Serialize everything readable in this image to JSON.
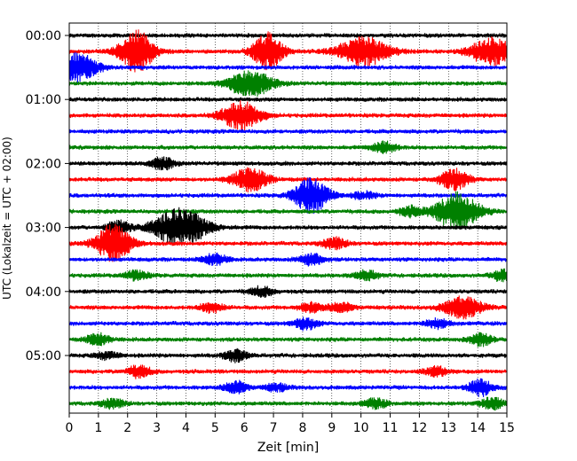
{
  "chart_data": {
    "type": "line",
    "subtype": "helicorder-seismogram",
    "xlabel": "Zeit  [min]",
    "ylabel": "UTC (Lokalzeit = UTC + 02:00)",
    "xlim": [
      0,
      15
    ],
    "x_ticks": [
      0,
      1,
      2,
      3,
      4,
      5,
      6,
      7,
      8,
      9,
      10,
      11,
      12,
      13,
      14,
      15
    ],
    "x_tick_labels": [
      "0",
      "1",
      "2",
      "3",
      "4",
      "5",
      "6",
      "7",
      "8",
      "9",
      "10",
      "11",
      "12",
      "13",
      "14",
      "15"
    ],
    "y_tick_labels": [
      {
        "label": "00:00",
        "row": 0
      },
      {
        "label": "01:00",
        "row": 4
      },
      {
        "label": "02:00",
        "row": 8
      },
      {
        "label": "03:00",
        "row": 12
      },
      {
        "label": "04:00",
        "row": 16
      },
      {
        "label": "05:00",
        "row": 20
      }
    ],
    "row_minutes": 15,
    "row_count": 24,
    "grid": {
      "vertical": "dotted",
      "horizontal": false
    },
    "colors": [
      "#000000",
      "#ff0000",
      "#0000ff",
      "#008000"
    ],
    "rows": [
      {
        "bursts": []
      },
      {
        "bursts": [
          [
            2.3,
            6.5,
            0.9
          ],
          [
            6.8,
            9,
            0.8
          ],
          [
            10.1,
            3,
            0.6
          ],
          [
            14.5,
            4,
            0.6
          ]
        ]
      },
      {
        "bursts": [
          [
            0.3,
            5,
            0.6
          ]
        ]
      },
      {
        "bursts": [
          [
            6.2,
            4,
            0.55
          ]
        ]
      },
      {
        "bursts": []
      },
      {
        "bursts": [
          [
            5.9,
            5,
            0.6
          ]
        ]
      },
      {
        "bursts": []
      },
      {
        "bursts": [
          [
            10.8,
            20,
            0.25
          ]
        ]
      },
      {
        "bursts": [
          [
            3.2,
            20,
            0.25
          ]
        ]
      },
      {
        "bursts": [
          [
            6.2,
            6,
            0.5
          ],
          [
            13.2,
            10,
            0.45
          ]
        ]
      },
      {
        "bursts": [
          [
            8.3,
            6,
            0.75
          ],
          [
            10.1,
            20,
            0.15
          ]
        ]
      },
      {
        "bursts": [
          [
            11.7,
            20,
            0.2
          ],
          [
            13.3,
            4,
            0.8
          ]
        ]
      },
      {
        "bursts": [
          [
            3.8,
            3,
            0.8
          ],
          [
            1.7,
            20,
            0.3
          ]
        ]
      },
      {
        "bursts": [
          [
            1.5,
            6,
            0.8
          ],
          [
            9.1,
            20,
            0.25
          ]
        ]
      },
      {
        "bursts": [
          [
            5.0,
            20,
            0.25
          ],
          [
            8.3,
            20,
            0.25
          ]
        ]
      },
      {
        "bursts": [
          [
            2.3,
            20,
            0.2
          ],
          [
            10.2,
            20,
            0.2
          ],
          [
            14.9,
            20,
            0.25
          ]
        ]
      },
      {
        "bursts": [
          [
            6.6,
            20,
            0.2
          ]
        ]
      },
      {
        "bursts": [
          [
            4.9,
            20,
            0.2
          ],
          [
            8.3,
            20,
            0.2
          ],
          [
            9.3,
            20,
            0.2
          ],
          [
            13.5,
            5,
            0.45
          ]
        ]
      },
      {
        "bursts": [
          [
            8.1,
            20,
            0.25
          ],
          [
            12.6,
            20,
            0.2
          ]
        ]
      },
      {
        "bursts": [
          [
            1.0,
            20,
            0.25
          ],
          [
            14.1,
            20,
            0.25
          ]
        ]
      },
      {
        "bursts": [
          [
            5.7,
            20,
            0.25
          ],
          [
            1.3,
            20,
            0.15
          ]
        ]
      },
      {
        "bursts": [
          [
            2.4,
            20,
            0.25
          ],
          [
            12.6,
            20,
            0.2
          ]
        ]
      },
      {
        "bursts": [
          [
            5.7,
            20,
            0.25
          ],
          [
            14.1,
            20,
            0.35
          ],
          [
            7.1,
            20,
            0.15
          ]
        ]
      },
      {
        "bursts": [
          [
            1.5,
            20,
            0.2
          ],
          [
            10.5,
            20,
            0.2
          ],
          [
            14.5,
            20,
            0.25
          ]
        ]
      }
    ]
  }
}
